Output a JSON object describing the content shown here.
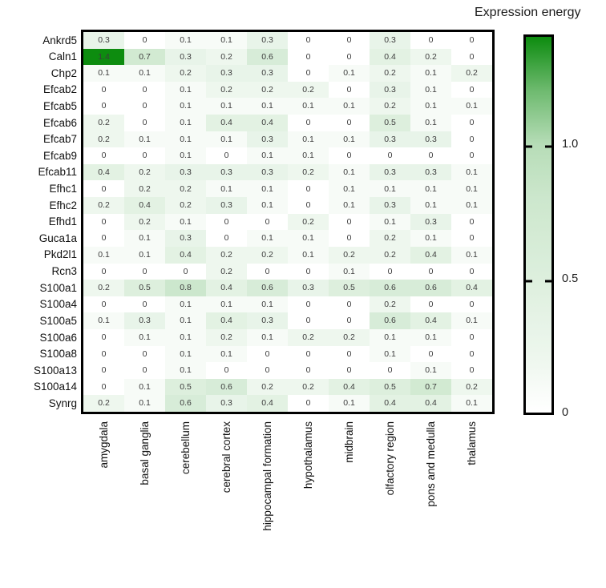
{
  "chart_data": {
    "type": "heatmap",
    "title": "Expression energy",
    "rows": [
      "Ankrd5",
      "Caln1",
      "Chp2",
      "Efcab2",
      "Efcab5",
      "Efcab6",
      "Efcab7",
      "Efcab9",
      "Efcab11",
      "Efhc1",
      "Efhc2",
      "Efhd1",
      "Guca1a",
      "Pkd2l1",
      "Rcn3",
      "S100a1",
      "S100a4",
      "S100a5",
      "S100a6",
      "S100a8",
      "S100a13",
      "S100a14",
      "Synrg"
    ],
    "columns": [
      "amygdala",
      "basal ganglia",
      "cerebellum",
      "cerebral cortex",
      "hippocampal formation",
      "hypothalamus",
      "midbrain",
      "olfactory region",
      "pons and medulla",
      "thalamus"
    ],
    "values": [
      [
        0.3,
        0,
        0.1,
        0.1,
        0.3,
        0,
        0,
        0.3,
        0,
        0
      ],
      [
        1.4,
        0.7,
        0.3,
        0.2,
        0.6,
        0,
        0,
        0.4,
        0.2,
        0
      ],
      [
        0.1,
        0.1,
        0.2,
        0.3,
        0.3,
        0,
        0.1,
        0.2,
        0.1,
        0.2
      ],
      [
        0,
        0,
        0.1,
        0.2,
        0.2,
        0.2,
        0,
        0.3,
        0.1,
        0
      ],
      [
        0,
        0,
        0.1,
        0.1,
        0.1,
        0.1,
        0.1,
        0.2,
        0.1,
        0.1
      ],
      [
        0.2,
        0,
        0.1,
        0.4,
        0.4,
        0,
        0,
        0.5,
        0.1,
        0
      ],
      [
        0.2,
        0.1,
        0.1,
        0.1,
        0.3,
        0.1,
        0.1,
        0.3,
        0.3,
        0
      ],
      [
        0,
        0,
        0.1,
        0,
        0.1,
        0.1,
        0,
        0,
        0,
        0
      ],
      [
        0.4,
        0.2,
        0.3,
        0.3,
        0.3,
        0.2,
        0.1,
        0.3,
        0.3,
        0.1
      ],
      [
        0,
        0.2,
        0.2,
        0.1,
        0.1,
        0,
        0.1,
        0.1,
        0.1,
        0.1
      ],
      [
        0.2,
        0.4,
        0.2,
        0.3,
        0.1,
        0,
        0.1,
        0.3,
        0.1,
        0.1
      ],
      [
        0,
        0.2,
        0.1,
        0,
        0,
        0.2,
        0,
        0.1,
        0.3,
        0
      ],
      [
        0,
        0.1,
        0.3,
        0,
        0.1,
        0.1,
        0,
        0.2,
        0.1,
        0
      ],
      [
        0.1,
        0.1,
        0.4,
        0.2,
        0.2,
        0.1,
        0.2,
        0.2,
        0.4,
        0.1
      ],
      [
        0,
        0,
        0,
        0.2,
        0,
        0,
        0.1,
        0,
        0,
        0
      ],
      [
        0.2,
        0.5,
        0.8,
        0.4,
        0.6,
        0.3,
        0.5,
        0.6,
        0.6,
        0.4
      ],
      [
        0,
        0,
        0.1,
        0.1,
        0.1,
        0,
        0,
        0.2,
        0,
        0
      ],
      [
        0.1,
        0.3,
        0.1,
        0.4,
        0.3,
        0,
        0,
        0.6,
        0.4,
        0.1
      ],
      [
        0,
        0.1,
        0.1,
        0.2,
        0.1,
        0.2,
        0.2,
        0.1,
        0.1,
        0
      ],
      [
        0,
        0,
        0.1,
        0.1,
        0,
        0,
        0,
        0.1,
        0,
        0
      ],
      [
        0,
        0,
        0.1,
        0,
        0,
        0,
        0,
        0,
        0.1,
        0
      ],
      [
        0,
        0.1,
        0.5,
        0.6,
        0.2,
        0.2,
        0.4,
        0.5,
        0.7,
        0.2
      ],
      [
        0.2,
        0.1,
        0.6,
        0.3,
        0.4,
        0,
        0.1,
        0.4,
        0.4,
        0.1
      ]
    ],
    "colorbar": {
      "title": "Expression energy",
      "tick_labels": [
        "1.0",
        "0.5",
        "0"
      ],
      "tick_values": [
        1.0,
        0.5,
        0
      ],
      "min": 0,
      "max": 1.4,
      "color_min": "#ffffff",
      "color_max": "#0d8c0f"
    },
    "xlabel": "",
    "ylabel": "",
    "grid": false,
    "legend_position": "right"
  }
}
